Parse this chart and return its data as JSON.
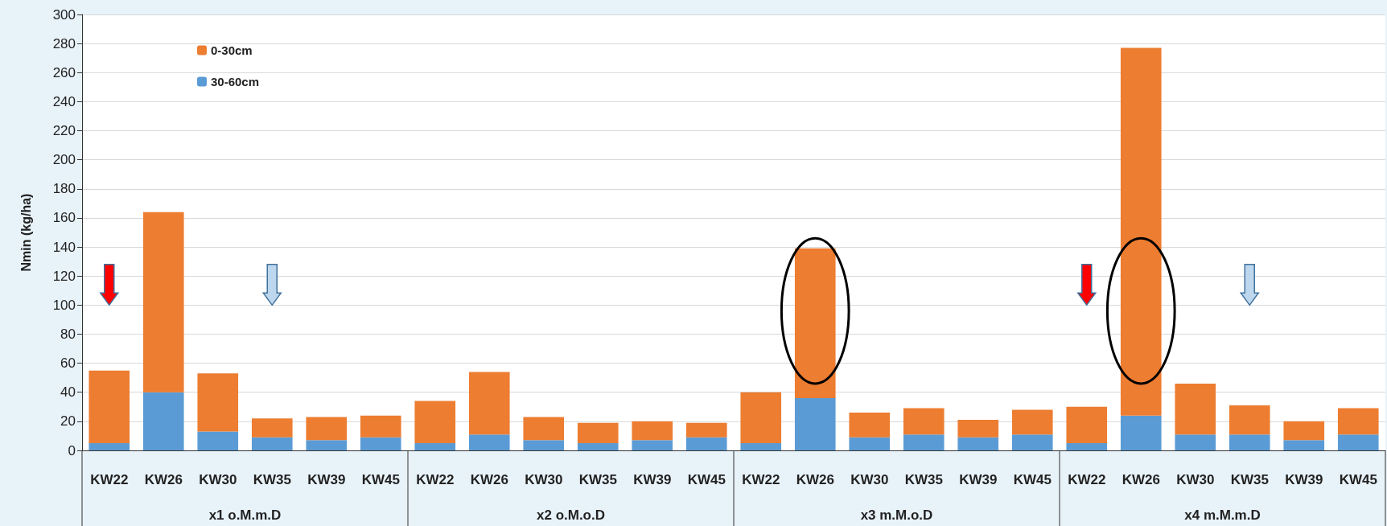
{
  "chart_data": {
    "type": "bar",
    "stacked": true,
    "ylabel": "Nmin (kg/ha)",
    "categories": [
      "KW22",
      "KW26",
      "KW30",
      "KW35",
      "KW39",
      "KW45",
      "KW22",
      "KW26",
      "KW30",
      "KW35",
      "KW39",
      "KW45",
      "KW22",
      "KW26",
      "KW30",
      "KW35",
      "KW39",
      "KW45",
      "KW22",
      "KW26",
      "KW30",
      "KW35",
      "KW39",
      "KW45"
    ],
    "series": [
      {
        "name": "30-60cm",
        "color": "#5b9bd5",
        "values": [
          5,
          40,
          13,
          9,
          7,
          9,
          5,
          11,
          7,
          5,
          7,
          9,
          5,
          36,
          9,
          11,
          9,
          11,
          5,
          24,
          11,
          11,
          7,
          11
        ]
      },
      {
        "name": "0-30cm",
        "color": "#ed7d31",
        "values": [
          50,
          124,
          40,
          13,
          16,
          15,
          29,
          43,
          16,
          14,
          13,
          10,
          35,
          103,
          17,
          18,
          12,
          17,
          25,
          253,
          35,
          20,
          13,
          18
        ]
      }
    ],
    "annotations": [
      "x1 o.M.m.D",
      "x2 o.M.o.D",
      "x3 m.M.o.D",
      "x4 m.M.m.D"
    ],
    "ylim": [
      0,
      300
    ],
    "yticks": [
      0,
      20,
      40,
      60,
      80,
      100,
      120,
      140,
      160,
      180,
      200,
      220,
      240,
      260,
      280,
      300
    ],
    "grid": "y",
    "legend": "top left"
  }
}
